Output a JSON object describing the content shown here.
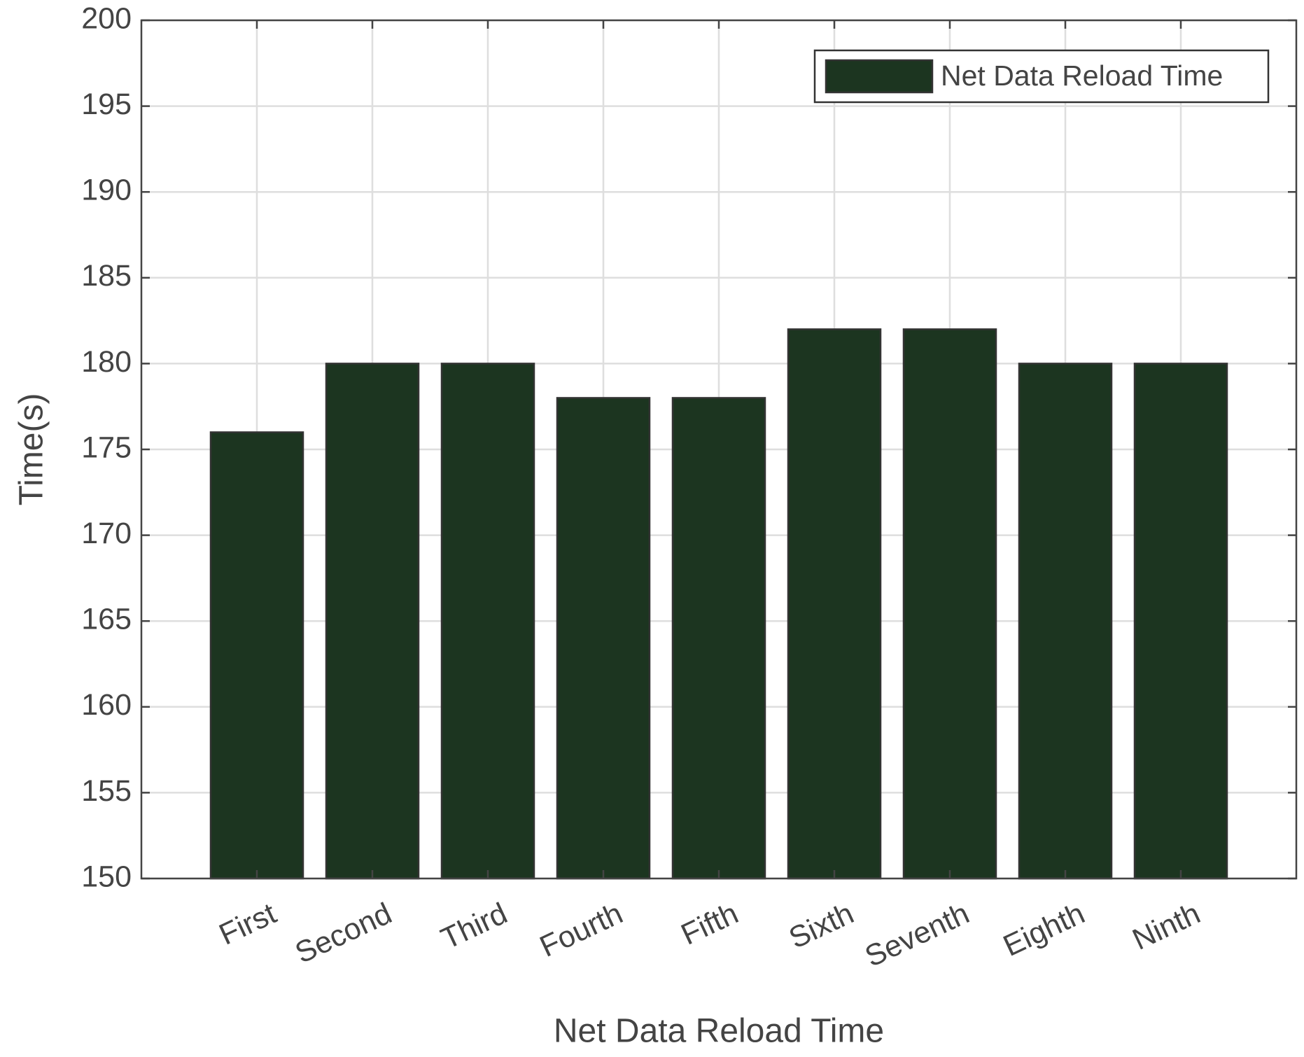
{
  "chart_data": {
    "type": "bar",
    "x_label": "Net Data Reload Time",
    "y_label": "Time(s)",
    "categories": [
      "First",
      "Second",
      "Third",
      "Fourth",
      "Fifth",
      "Sixth",
      "Seventh",
      "Eighth",
      "Ninth"
    ],
    "series": [
      {
        "name": "Net Data Reload Time",
        "color": "#1c3520",
        "values": [
          176,
          180,
          180,
          178,
          178,
          182,
          182,
          180,
          180
        ]
      }
    ],
    "ylim": [
      150,
      200
    ],
    "yticks": [
      150,
      155,
      160,
      165,
      170,
      175,
      180,
      185,
      190,
      195,
      200
    ],
    "grid": true,
    "legend": "top-right"
  }
}
